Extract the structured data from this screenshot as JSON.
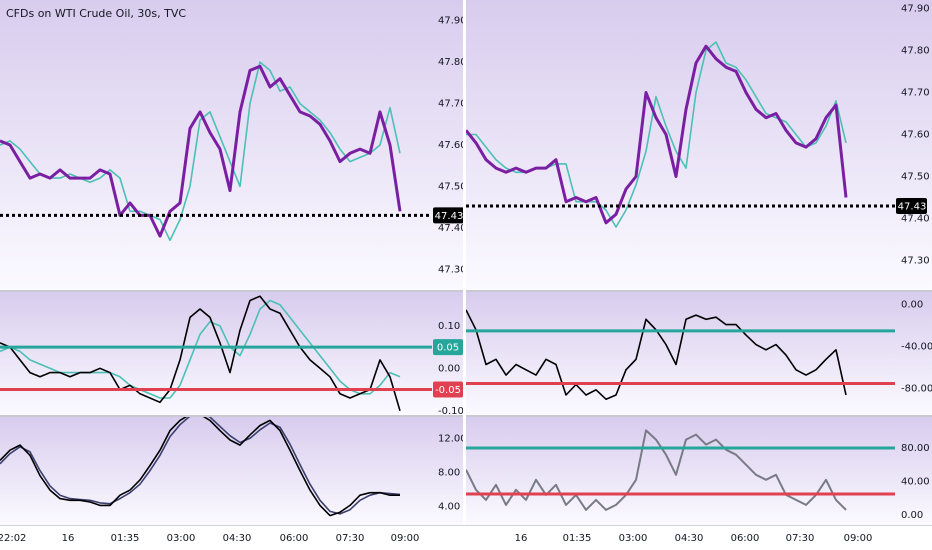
{
  "chart_data": [
    {
      "type": "line",
      "title": "CFDs on WTI Crude Oil, 30s, TVC",
      "xlim": [
        0,
        43.2
      ],
      "ylim": [
        47.25,
        47.95
      ],
      "yticks": [
        {
          "value": 47.9,
          "label": "47.90"
        },
        {
          "value": 47.8,
          "label": "47.80"
        },
        {
          "value": 47.7,
          "label": "47.70"
        },
        {
          "value": 47.6,
          "label": "47.60"
        },
        {
          "value": 47.5,
          "label": "47.50"
        },
        {
          "value": 47.4,
          "label": "47.40"
        },
        {
          "value": 47.3,
          "label": "47.30"
        }
      ],
      "last_price": 47.43,
      "series": [
        {
          "color": "#4cc0b5",
          "values": [
            47.6,
            47.61,
            47.59,
            47.56,
            47.53,
            47.52,
            47.52,
            47.53,
            47.52,
            47.51,
            47.52,
            47.54,
            47.52,
            47.44,
            47.44,
            47.43,
            47.42,
            47.37,
            47.42,
            47.5,
            47.66,
            47.68,
            47.62,
            47.56,
            47.5,
            47.7,
            47.8,
            47.78,
            47.73,
            47.74,
            47.7,
            47.68,
            47.66,
            47.63,
            47.59,
            47.56,
            47.57,
            47.58,
            47.6,
            47.69,
            47.58
          ]
        },
        {
          "color": "#7b1fa2",
          "values": [
            47.61,
            47.6,
            47.56,
            47.52,
            47.53,
            47.52,
            47.54,
            47.52,
            47.52,
            47.52,
            47.54,
            47.53,
            47.43,
            47.46,
            47.43,
            47.43,
            47.38,
            47.44,
            47.46,
            47.64,
            47.68,
            47.63,
            47.59,
            47.49,
            47.68,
            47.78,
            47.79,
            47.74,
            47.76,
            47.72,
            47.68,
            47.67,
            47.65,
            47.61,
            47.56,
            47.58,
            47.59,
            47.58,
            47.68,
            47.6,
            47.44
          ]
        }
      ]
    },
    {
      "type": "line",
      "xlim": [
        0,
        43.2
      ],
      "ylim": [
        -0.11,
        0.18
      ],
      "yticks": [
        {
          "value": 0.1,
          "label": "0.10"
        },
        {
          "value": 0,
          "label": "0.00"
        },
        {
          "value": -0.1,
          "label": "-0.10"
        }
      ],
      "levels": [
        {
          "value": 0.05,
          "color": "#26a69a"
        },
        {
          "value": -0.05,
          "color": "#e0404f"
        }
      ],
      "series": [
        {
          "color": "#4cc0b5",
          "values": [
            0.04,
            0.05,
            0.04,
            0.02,
            0.01,
            0,
            -0.01,
            -0.01,
            -0.01,
            -0.01,
            -0.01,
            -0.01,
            -0.02,
            -0.04,
            -0.05,
            -0.06,
            -0.07,
            -0.07,
            -0.04,
            0.02,
            0.08,
            0.11,
            0.1,
            0.05,
            0.03,
            0.08,
            0.14,
            0.16,
            0.15,
            0.12,
            0.09,
            0.06,
            0.03,
            0,
            -0.03,
            -0.05,
            -0.06,
            -0.06,
            -0.04,
            -0.01,
            -0.02
          ]
        },
        {
          "color": "#000000",
          "values": [
            0.06,
            0.05,
            0.02,
            -0.01,
            -0.02,
            -0.01,
            -0.01,
            -0.02,
            -0.01,
            -0.01,
            0,
            -0.01,
            -0.05,
            -0.04,
            -0.06,
            -0.07,
            -0.08,
            -0.05,
            0.02,
            0.12,
            0.14,
            0.12,
            0.06,
            -0.01,
            0.09,
            0.16,
            0.17,
            0.14,
            0.13,
            0.09,
            0.05,
            0.02,
            0,
            -0.02,
            -0.06,
            -0.07,
            -0.06,
            -0.05,
            0.02,
            -0.02,
            -0.1
          ]
        }
      ]
    },
    {
      "type": "line",
      "xlim": [
        0,
        43.2
      ],
      "ylim": [
        1.8,
        14.5
      ],
      "yticks": [
        {
          "value": 12,
          "label": "12.00"
        },
        {
          "value": 8,
          "label": "8.00"
        },
        {
          "value": 4,
          "label": "4.00"
        }
      ],
      "xticks": [
        {
          "value": 1.2,
          "label": "22:02"
        },
        {
          "value": 6.8,
          "label": "16"
        },
        {
          "value": 12.5,
          "label": "01:35"
        },
        {
          "value": 18.1,
          "label": "03:00"
        },
        {
          "value": 23.7,
          "label": "04:30"
        },
        {
          "value": 29.4,
          "label": "06:00"
        },
        {
          "value": 35.0,
          "label": "07:30"
        },
        {
          "value": 40.5,
          "label": "09:00"
        }
      ],
      "series": [
        {
          "color": "#3b3f6e",
          "values": [
            9.0,
            10.2,
            11.0,
            10.4,
            8.2,
            6.4,
            5.3,
            4.9,
            4.8,
            4.7,
            4.4,
            4.3,
            4.9,
            5.6,
            6.6,
            8.2,
            10.0,
            12.2,
            13.6,
            14.6,
            15.0,
            14.5,
            13.4,
            12.3,
            11.5,
            12.0,
            13.0,
            13.8,
            13.3,
            11.3,
            8.9,
            6.6,
            4.7,
            3.4,
            3.1,
            3.6,
            4.7,
            5.3,
            5.6,
            5.5,
            5.4
          ]
        },
        {
          "color": "#000000",
          "values": [
            9.4,
            10.6,
            11.2,
            10,
            7.6,
            5.9,
            4.9,
            4.7,
            4.7,
            4.5,
            4.1,
            4.1,
            5.3,
            5.9,
            7.1,
            8.8,
            10.6,
            12.9,
            14.1,
            14.8,
            14.8,
            14.1,
            12.9,
            11.8,
            11.2,
            12.4,
            13.5,
            14.1,
            12.9,
            10.6,
            8.2,
            5.9,
            4.1,
            2.9,
            3.3,
            4.1,
            5.3,
            5.6,
            5.6,
            5.3,
            5.3
          ]
        }
      ]
    },
    {
      "type": "line",
      "xlim": [
        0,
        42.9
      ],
      "ylim": [
        47.23,
        47.92
      ],
      "yticks": [
        {
          "value": 47.9,
          "label": "47.90"
        },
        {
          "value": 47.8,
          "label": "47.80"
        },
        {
          "value": 47.7,
          "label": "47.70"
        },
        {
          "value": 47.6,
          "label": "47.60"
        },
        {
          "value": 47.5,
          "label": "47.50"
        },
        {
          "value": 47.4,
          "label": "47.40"
        },
        {
          "value": 47.3,
          "label": "47.30"
        }
      ],
      "last_price": 47.43,
      "series": [
        {
          "color": "#4cc0b5",
          "values": [
            47.6,
            47.6,
            47.57,
            47.54,
            47.52,
            47.51,
            47.51,
            47.52,
            47.52,
            47.53,
            47.53,
            47.44,
            47.44,
            47.44,
            47.42,
            47.38,
            47.42,
            47.48,
            47.56,
            47.69,
            47.62,
            47.56,
            47.52,
            47.7,
            47.8,
            47.82,
            47.77,
            47.76,
            47.73,
            47.69,
            47.65,
            47.64,
            47.63,
            47.6,
            47.57,
            47.58,
            47.62,
            47.68,
            47.58
          ]
        },
        {
          "color": "#7b1fa2",
          "values": [
            47.61,
            47.58,
            47.54,
            47.52,
            47.51,
            47.52,
            47.51,
            47.52,
            47.52,
            47.54,
            47.44,
            47.45,
            47.44,
            47.45,
            47.39,
            47.41,
            47.47,
            47.5,
            47.7,
            47.64,
            47.6,
            47.5,
            47.66,
            47.77,
            47.81,
            47.78,
            47.76,
            47.75,
            47.7,
            47.66,
            47.64,
            47.65,
            47.61,
            47.58,
            47.57,
            47.59,
            47.64,
            47.67,
            47.45
          ]
        }
      ]
    },
    {
      "type": "line",
      "xlim": [
        0,
        42.9
      ],
      "ylim": [
        -105,
        12
      ],
      "yticks": [
        {
          "value": 0,
          "label": "0.00"
        },
        {
          "value": -40,
          "label": "-40.00"
        },
        {
          "value": -80,
          "label": "-80.00"
        }
      ],
      "levels": [
        {
          "value": -25,
          "color": "#26a69a"
        },
        {
          "value": -75,
          "color": "#e0404f"
        }
      ],
      "series": [
        {
          "color": "#000000",
          "values": [
            -5,
            -24,
            -57,
            -52,
            -67,
            -57,
            -62,
            -67,
            -52,
            -57,
            -86,
            -76,
            -86,
            -81,
            -90,
            -86,
            -62,
            -52,
            -14,
            -24,
            -38,
            -57,
            -14,
            -10,
            -14,
            -12,
            -19,
            -19,
            -29,
            -38,
            -43,
            -38,
            -48,
            -62,
            -67,
            -62,
            -52,
            -43,
            -86
          ]
        }
      ]
    },
    {
      "type": "line",
      "xlim": [
        0,
        42.9
      ],
      "ylim": [
        -12,
        117
      ],
      "yticks": [
        {
          "value": 80,
          "label": "80.00"
        },
        {
          "value": 40,
          "label": "40.00"
        },
        {
          "value": 0,
          "label": "0.00"
        }
      ],
      "levels": [
        {
          "value": 80,
          "color": "#26a69a"
        },
        {
          "value": 25,
          "color": "#e0404f"
        }
      ],
      "xticks": [
        {
          "value": 5.5,
          "label": "16"
        },
        {
          "value": 11.1,
          "label": "01:35"
        },
        {
          "value": 16.7,
          "label": "03:00"
        },
        {
          "value": 22.3,
          "label": "04:30"
        },
        {
          "value": 27.9,
          "label": "06:00"
        },
        {
          "value": 33.4,
          "label": "07:30"
        },
        {
          "value": 39.2,
          "label": "09:00"
        }
      ],
      "series": [
        {
          "color": "#787b86",
          "values": [
            54,
            30,
            18,
            36,
            12,
            30,
            18,
            42,
            24,
            36,
            12,
            24,
            6,
            18,
            6,
            12,
            24,
            42,
            101,
            90,
            72,
            48,
            90,
            96,
            84,
            90,
            78,
            72,
            60,
            48,
            42,
            48,
            24,
            18,
            12,
            24,
            42,
            18,
            6
          ]
        }
      ]
    }
  ]
}
